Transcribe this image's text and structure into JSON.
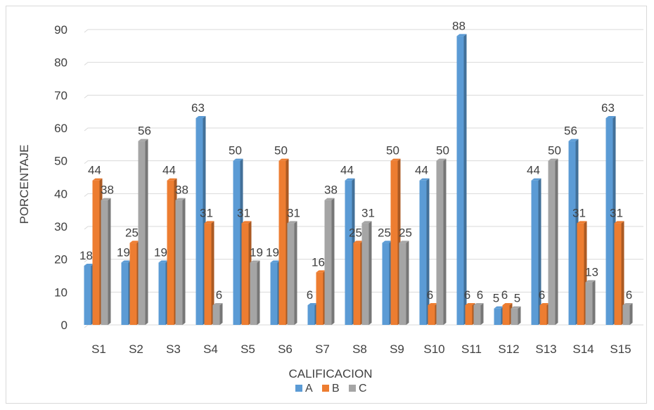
{
  "chart_data": {
    "type": "bar",
    "xlabel": "CALIFICACION",
    "ylabel": "PORCENTAJE",
    "ylim": [
      0,
      90
    ],
    "yticks": [
      0,
      10,
      20,
      30,
      40,
      50,
      60,
      70,
      80,
      90
    ],
    "grid": true,
    "legend_position": "bottom",
    "categories": [
      "S1",
      "S2",
      "S3",
      "S4",
      "S5",
      "S6",
      "S7",
      "S8",
      "S9",
      "S10",
      "S11",
      "S12",
      "S13",
      "S14",
      "S15"
    ],
    "series": [
      {
        "name": "A",
        "color": "#5b9bd5",
        "values": [
          18,
          19,
          19,
          63,
          50,
          19,
          6,
          44,
          25,
          44,
          88,
          5,
          44,
          56,
          63
        ]
      },
      {
        "name": "B",
        "color": "#ed7d31",
        "values": [
          44,
          25,
          44,
          31,
          31,
          50,
          16,
          25,
          50,
          6,
          6,
          6,
          6,
          31,
          31
        ]
      },
      {
        "name": "C",
        "color": "#a5a5a5",
        "values": [
          38,
          56,
          38,
          6,
          19,
          31,
          38,
          31,
          25,
          50,
          6,
          5,
          50,
          13,
          6
        ]
      }
    ]
  }
}
